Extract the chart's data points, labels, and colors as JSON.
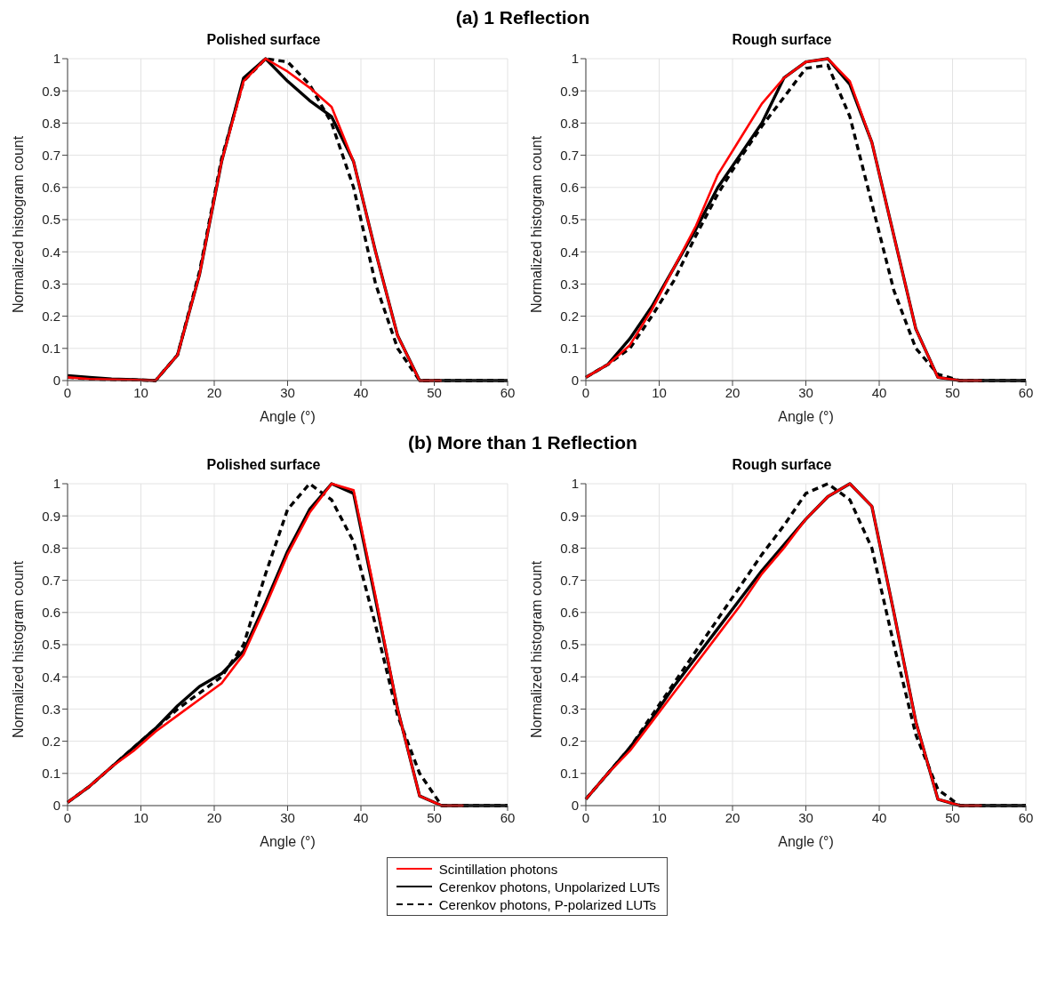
{
  "chart_data": [
    {
      "type": "line",
      "title": "Polished surface",
      "annotations": [
        "(a) 1 Reflection"
      ],
      "xlabel": "Angle (°)",
      "ylabel": "Normalized histogram count",
      "x": [
        0,
        3,
        6,
        9,
        12,
        15,
        18,
        21,
        24,
        27,
        30,
        33,
        36,
        39,
        42,
        45,
        48,
        51,
        54,
        57,
        60
      ],
      "xlim": [
        0,
        60
      ],
      "xticks": [
        0,
        10,
        20,
        30,
        40,
        50,
        60
      ],
      "ylim": [
        0,
        1
      ],
      "yticks": [
        0,
        0.1,
        0.2,
        0.3,
        0.4,
        0.5,
        0.6,
        0.7,
        0.8,
        0.9,
        1
      ],
      "grid": true,
      "marker": "none",
      "legend": false,
      "series": [
        {
          "color": "#ff0000",
          "line_style": "solid",
          "values": [
            0.01,
            0.005,
            0.003,
            0.002,
            0,
            0.08,
            0.33,
            0.68,
            0.93,
            1,
            0.96,
            0.91,
            0.85,
            0.68,
            0.4,
            0.14,
            0,
            0,
            null,
            null,
            null
          ]
        },
        {
          "color": "#000000",
          "line_style": "solid",
          "values": [
            0.015,
            0.01,
            0.005,
            0.003,
            0,
            0.08,
            0.33,
            0.68,
            0.94,
            1,
            0.93,
            0.87,
            0.82,
            0.68,
            0.4,
            0.14,
            0,
            0,
            0,
            0,
            0
          ]
        },
        {
          "color": "#000000",
          "line_style": "dashed",
          "values": [
            0.01,
            0.005,
            0.003,
            0.002,
            0,
            0.08,
            0.34,
            0.69,
            0.93,
            1,
            0.99,
            0.92,
            0.8,
            0.6,
            0.3,
            0.1,
            0,
            0,
            0,
            0,
            0
          ]
        }
      ]
    },
    {
      "type": "line",
      "title": "Rough surface",
      "xlabel": "Angle (°)",
      "ylabel": "Normalized histogram count",
      "x": [
        0,
        3,
        6,
        9,
        12,
        15,
        18,
        21,
        24,
        27,
        30,
        33,
        36,
        39,
        42,
        45,
        48,
        51,
        54,
        57,
        60
      ],
      "xlim": [
        0,
        60
      ],
      "xticks": [
        0,
        10,
        20,
        30,
        40,
        50,
        60
      ],
      "ylim": [
        0,
        1
      ],
      "yticks": [
        0,
        0.1,
        0.2,
        0.3,
        0.4,
        0.5,
        0.6,
        0.7,
        0.8,
        0.9,
        1
      ],
      "grid": true,
      "marker": "none",
      "legend": false,
      "series": [
        {
          "color": "#ff0000",
          "line_style": "solid",
          "values": [
            0.01,
            0.05,
            0.11,
            0.22,
            0.35,
            0.48,
            0.64,
            0.75,
            0.86,
            0.94,
            0.99,
            1,
            0.93,
            0.74,
            0.45,
            0.16,
            0.01,
            0,
            0,
            null,
            null
          ]
        },
        {
          "color": "#000000",
          "line_style": "solid",
          "values": [
            0.01,
            0.05,
            0.13,
            0.23,
            0.35,
            0.47,
            0.6,
            0.7,
            0.8,
            0.94,
            0.99,
            1,
            0.92,
            0.74,
            0.45,
            0.16,
            0.01,
            0,
            0,
            0,
            0
          ]
        },
        {
          "color": "#000000",
          "line_style": "dashed",
          "values": [
            0.01,
            0.05,
            0.1,
            0.2,
            0.31,
            0.45,
            0.58,
            0.69,
            0.79,
            0.88,
            0.97,
            0.98,
            0.82,
            0.55,
            0.28,
            0.1,
            0.02,
            0,
            0,
            0,
            0
          ]
        }
      ]
    },
    {
      "type": "line",
      "title": "Polished surface",
      "annotations": [
        "(b) More than 1 Reflection"
      ],
      "xlabel": "Angle (°)",
      "ylabel": "Normalized histogram count",
      "x": [
        0,
        3,
        6,
        9,
        12,
        15,
        18,
        21,
        24,
        27,
        30,
        33,
        36,
        39,
        42,
        45,
        48,
        51,
        54,
        57,
        60
      ],
      "xlim": [
        0,
        60
      ],
      "xticks": [
        0,
        10,
        20,
        30,
        40,
        50,
        60
      ],
      "ylim": [
        0,
        1
      ],
      "yticks": [
        0,
        0.1,
        0.2,
        0.3,
        0.4,
        0.5,
        0.6,
        0.7,
        0.8,
        0.9,
        1
      ],
      "grid": true,
      "marker": "none",
      "legend": false,
      "series": [
        {
          "color": "#ff0000",
          "line_style": "solid",
          "values": [
            0.01,
            0.06,
            0.12,
            0.17,
            0.23,
            0.28,
            0.33,
            0.38,
            0.47,
            0.62,
            0.78,
            0.91,
            1,
            0.98,
            0.65,
            0.3,
            0.03,
            0,
            0,
            null,
            null
          ]
        },
        {
          "color": "#000000",
          "line_style": "solid",
          "values": [
            0.01,
            0.06,
            0.12,
            0.18,
            0.24,
            0.31,
            0.37,
            0.41,
            0.48,
            0.63,
            0.79,
            0.92,
            1,
            0.97,
            0.64,
            0.3,
            0.03,
            0,
            0,
            0,
            0
          ]
        },
        {
          "color": "#000000",
          "line_style": "dashed",
          "values": [
            0.01,
            0.06,
            0.12,
            0.18,
            0.24,
            0.3,
            0.35,
            0.4,
            0.5,
            0.72,
            0.92,
            1,
            0.95,
            0.82,
            0.56,
            0.28,
            0.1,
            0,
            0,
            0,
            0
          ]
        }
      ]
    },
    {
      "type": "line",
      "title": "Rough surface",
      "xlabel": "Angle (°)",
      "ylabel": "Normalized histogram count",
      "x": [
        0,
        3,
        6,
        9,
        12,
        15,
        18,
        21,
        24,
        27,
        30,
        33,
        36,
        39,
        42,
        45,
        48,
        51,
        54,
        57,
        60
      ],
      "xlim": [
        0,
        60
      ],
      "xticks": [
        0,
        10,
        20,
        30,
        40,
        50,
        60
      ],
      "ylim": [
        0,
        1
      ],
      "yticks": [
        0,
        0.1,
        0.2,
        0.3,
        0.4,
        0.5,
        0.6,
        0.7,
        0.8,
        0.9,
        1
      ],
      "grid": true,
      "marker": "none",
      "legend": "bottom",
      "series": [
        {
          "name": "Scintillation photons",
          "color": "#ff0000",
          "line_style": "solid",
          "values": [
            0.02,
            0.1,
            0.17,
            0.26,
            0.35,
            0.44,
            0.53,
            0.62,
            0.72,
            0.8,
            0.89,
            0.96,
            1,
            0.93,
            0.6,
            0.26,
            0.02,
            0,
            0,
            null,
            null
          ]
        },
        {
          "name": "Cerenkov photons, Unpolarized LUTs",
          "color": "#000000",
          "line_style": "solid",
          "values": [
            0.02,
            0.1,
            0.18,
            0.27,
            0.37,
            0.46,
            0.55,
            0.64,
            0.73,
            0.81,
            0.89,
            0.96,
            1,
            0.93,
            0.6,
            0.26,
            0.02,
            0,
            0,
            0,
            0
          ]
        },
        {
          "name": "Cerenkov photons, P-polarized LUTs",
          "color": "#000000",
          "line_style": "dashed",
          "values": [
            0.02,
            0.1,
            0.18,
            0.28,
            0.38,
            0.48,
            0.58,
            0.68,
            0.78,
            0.87,
            0.97,
            1,
            0.95,
            0.8,
            0.5,
            0.22,
            0.05,
            0,
            0,
            0,
            0
          ]
        }
      ]
    }
  ]
}
